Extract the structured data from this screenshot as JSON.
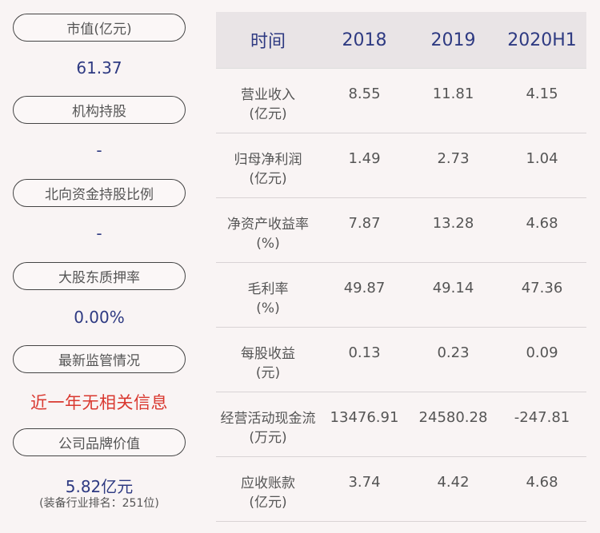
{
  "left_panel": {
    "items": [
      {
        "label": "市值(亿元)",
        "value": "61.37"
      },
      {
        "label": "机构持股",
        "value": "-"
      },
      {
        "label": "北向资金持股比例",
        "value": "-"
      },
      {
        "label": "大股东质押率",
        "value": "0.00%"
      },
      {
        "label": "最新监管情况",
        "value": "近一年无相关信息"
      },
      {
        "label": "公司品牌价值",
        "value": "5.82亿元",
        "note": "(装备行业排名：251位)"
      }
    ]
  },
  "table": {
    "headers": [
      "时间",
      "2018",
      "2019",
      "2020H1"
    ],
    "rows": [
      {
        "name": "营业收入",
        "unit": "(亿元)",
        "values": [
          "8.55",
          "11.81",
          "4.15"
        ]
      },
      {
        "name": "归母净利润",
        "unit": "(亿元)",
        "values": [
          "1.49",
          "2.73",
          "1.04"
        ]
      },
      {
        "name": "净资产收益率",
        "unit": "(%)",
        "values": [
          "7.87",
          "13.28",
          "4.68"
        ]
      },
      {
        "name": "毛利率",
        "unit": "(%)",
        "values": [
          "49.87",
          "49.14",
          "47.36"
        ]
      },
      {
        "name": "每股收益",
        "unit": "(元)",
        "values": [
          "0.13",
          "0.23",
          "0.09"
        ]
      },
      {
        "name": "经营活动现金流",
        "unit": "(万元)",
        "values": [
          "13476.91",
          "24580.28",
          "-247.81"
        ]
      },
      {
        "name": "应收账款",
        "unit": "(亿元)",
        "values": [
          "3.74",
          "4.42",
          "4.68"
        ]
      }
    ]
  }
}
